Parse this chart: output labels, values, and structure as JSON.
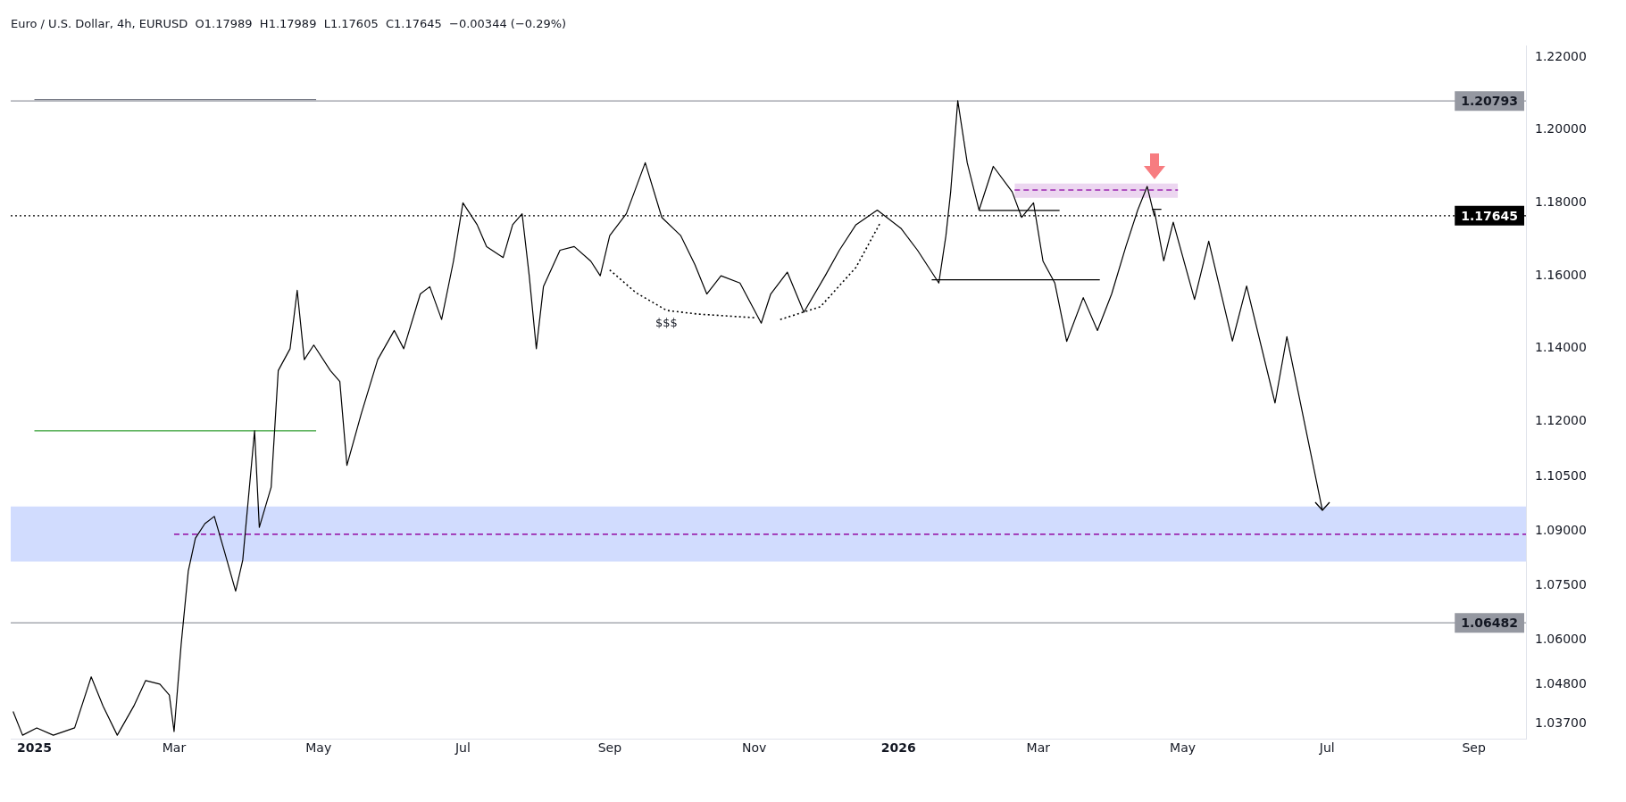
{
  "chart_data": {
    "type": "line",
    "title": "Euro / U.S. Dollar, 4h, EURUSD  O1.17989  H1.17989  L1.17605  C1.17645  −0.00344 (−0.29%)",
    "xlim": [
      "2024-12-22",
      "2026-09-23"
    ],
    "xticks": [
      {
        "value": "2025-01-01",
        "label": "2025"
      },
      {
        "value": "2025-03-01",
        "label": "Mar"
      },
      {
        "value": "2025-05-01",
        "label": "May"
      },
      {
        "value": "2025-07-01",
        "label": "Jul"
      },
      {
        "value": "2025-09-01",
        "label": "Sep"
      },
      {
        "value": "2025-11-01",
        "label": "Nov"
      },
      {
        "value": "2026-01-01",
        "label": "2026"
      },
      {
        "value": "2026-03-01",
        "label": "Mar"
      },
      {
        "value": "2026-05-01",
        "label": "May"
      },
      {
        "value": "2026-07-01",
        "label": "Jul"
      },
      {
        "value": "2026-09-01",
        "label": "Sep"
      }
    ],
    "ylim": [
      1.033,
      1.223
    ],
    "yticks": [
      {
        "value": 1.037,
        "label": "1.03700"
      },
      {
        "value": 1.048,
        "label": "1.04800"
      },
      {
        "value": 1.06,
        "label": "1.06000"
      },
      {
        "value": 1.075,
        "label": "1.07500"
      },
      {
        "value": 1.09,
        "label": "1.09000"
      },
      {
        "value": 1.105,
        "label": "1.10500"
      },
      {
        "value": 1.12,
        "label": "1.12000"
      },
      {
        "value": 1.14,
        "label": "1.14000"
      },
      {
        "value": 1.16,
        "label": "1.16000"
      },
      {
        "value": 1.18,
        "label": "1.18000"
      },
      {
        "value": 1.2,
        "label": "1.20000"
      },
      {
        "value": 1.22,
        "label": "1.22000"
      }
    ],
    "grid": false,
    "legend": false,
    "marker": "none",
    "series": [
      {
        "color": "#000000",
        "x": [
          "2024-12-23",
          "2024-12-27",
          "2025-01-02",
          "2025-01-09",
          "2025-01-18",
          "2025-01-25",
          "2025-01-30",
          "2025-02-05",
          "2025-02-12",
          "2025-02-17",
          "2025-02-23",
          "2025-02-27",
          "2025-03-01",
          "2025-03-04",
          "2025-03-07",
          "2025-03-10",
          "2025-03-14",
          "2025-03-18",
          "2025-03-22",
          "2025-03-27",
          "2025-03-30",
          "2025-04-04",
          "2025-04-06",
          "2025-04-11",
          "2025-04-14",
          "2025-04-19",
          "2025-04-22",
          "2025-04-25",
          "2025-04-29",
          "2025-05-06",
          "2025-05-10",
          "2025-05-13",
          "2025-05-19",
          "2025-05-26",
          "2025-06-02",
          "2025-06-06",
          "2025-06-13",
          "2025-06-17",
          "2025-06-22",
          "2025-06-27",
          "2025-07-01",
          "2025-07-07",
          "2025-07-11",
          "2025-07-18",
          "2025-07-22",
          "2025-07-26",
          "2025-07-29",
          "2025-08-01",
          "2025-08-04",
          "2025-08-11",
          "2025-08-17",
          "2025-08-24",
          "2025-08-28",
          "2025-09-01",
          "2025-09-08",
          "2025-09-16",
          "2025-09-23",
          "2025-10-01",
          "2025-10-07",
          "2025-10-12",
          "2025-10-18",
          "2025-10-26",
          "2025-11-04",
          "2025-11-08",
          "2025-11-15",
          "2025-11-22",
          "2025-12-01",
          "2025-12-07",
          "2025-12-14",
          "2025-12-23",
          "2026-01-02",
          "2026-01-09",
          "2026-01-15",
          "2026-01-18",
          "2026-01-21",
          "2026-01-23",
          "2026-01-26",
          "2026-01-30",
          "2026-02-04",
          "2026-02-10",
          "2026-02-18",
          "2026-02-22",
          "2026-02-27",
          "2026-03-03",
          "2026-03-08",
          "2026-03-13",
          "2026-03-20",
          "2026-03-26",
          "2026-04-01",
          "2026-04-07",
          "2026-04-12",
          "2026-04-16",
          "2026-04-19"
        ],
        "values": [
          1.0405,
          1.034,
          1.036,
          1.034,
          1.036,
          1.05,
          1.042,
          1.034,
          1.042,
          1.049,
          1.048,
          1.045,
          1.035,
          1.059,
          1.079,
          1.088,
          1.092,
          1.094,
          1.085,
          1.0735,
          1.082,
          1.1175,
          1.091,
          1.102,
          1.134,
          1.14,
          1.156,
          1.137,
          1.141,
          1.134,
          1.131,
          1.108,
          1.122,
          1.137,
          1.145,
          1.14,
          1.155,
          1.157,
          1.148,
          1.164,
          1.18,
          1.174,
          1.168,
          1.165,
          1.174,
          1.177,
          1.16,
          1.14,
          1.157,
          1.167,
          1.168,
          1.164,
          1.16,
          1.171,
          1.177,
          1.191,
          1.176,
          1.171,
          1.163,
          1.155,
          1.16,
          1.158,
          1.147,
          1.155,
          1.161,
          1.15,
          1.16,
          1.167,
          1.174,
          1.178,
          1.173,
          1.167,
          1.161,
          1.158,
          1.171,
          1.183,
          1.208,
          1.191,
          1.178,
          1.19,
          1.183,
          1.176,
          1.18,
          1.164,
          1.158,
          1.142,
          1.154,
          1.145,
          1.155,
          1.168,
          1.178,
          1.1845,
          1.17645
        ]
      },
      {
        "color": "#000000",
        "x": [
          "2026-04-19",
          "2026-04-23",
          "2026-04-27",
          "2026-05-06",
          "2026-05-12",
          "2026-05-22",
          "2026-05-28",
          "2026-06-09",
          "2026-06-14",
          "2026-06-29"
        ],
        "values": [
          1.178,
          1.1641,
          1.1747,
          1.1535,
          1.1695,
          1.1421,
          1.1572,
          1.1251,
          1.1433,
          1.0957
        ]
      },
      {
        "color": "#787b86",
        "x": [
          "2025-01-01",
          "2025-04-30"
        ],
        "values": [
          1.2083,
          1.2083
        ]
      },
      {
        "color": "#2e9c2e",
        "x": [
          "2025-01-01",
          "2025-04-30"
        ],
        "values": [
          1.1175,
          1.1175
        ]
      },
      {
        "color": "#000000",
        "x": [
          "2026-01-15",
          "2026-03-27"
        ],
        "values": [
          1.1589,
          1.1589
        ]
      },
      {
        "color": "#000000",
        "x": [
          "2026-02-04",
          "2026-03-10"
        ],
        "values": [
          1.1779,
          1.1779
        ]
      },
      {
        "color": "#000000",
        "x": [
          "2026-04-18",
          "2026-04-22"
        ],
        "values": [
          1.1782,
          1.1782
        ]
      },
      {
        "color": "#000000",
        "line_style": "dotted",
        "x": [
          "2025-09-01",
          "2025-09-12",
          "2025-09-25",
          "2025-10-08",
          "2025-11-01"
        ],
        "values": [
          1.1616,
          1.1554,
          1.1505,
          1.1495,
          1.1485
        ]
      },
      {
        "color": "#000000",
        "line_style": "dotted",
        "x": [
          "2025-11-12",
          "2025-11-29",
          "2025-12-14",
          "2025-12-24"
        ],
        "values": [
          1.148,
          1.1515,
          1.1623,
          1.1742
        ]
      },
      {
        "color": "#9c27b0",
        "line_style": "dashed",
        "x": [
          "2025-03-01",
          "2026-09-23"
        ],
        "values": [
          1.0891,
          1.0891
        ]
      },
      {
        "color": "#9c27b0",
        "line_style": "dashed",
        "x": [
          "2026-02-19",
          "2026-04-29"
        ],
        "values": [
          1.1835,
          1.1835
        ],
        "lower": [
          1.1814,
          1.1814
        ],
        "upper": [
          1.1853,
          1.1853
        ]
      }
    ],
    "bands": [
      {
        "axis": "y",
        "from": 1.0816,
        "to": 1.0967,
        "color": "#d1dcfe"
      }
    ],
    "ref_lines": [
      {
        "axis": "y",
        "value": 1.20793,
        "label": "1.20793",
        "color": "#9598a1"
      },
      {
        "axis": "y",
        "value": 1.17645,
        "label": "1.17645",
        "color": "#000000",
        "line_style": "dotted"
      },
      {
        "axis": "y",
        "value": 1.06482,
        "label": "1.06482",
        "color": "#9598a1"
      }
    ],
    "annotations": [
      {
        "text": "$$$",
        "x": "2025-09-25",
        "y": 1.1505
      }
    ]
  }
}
